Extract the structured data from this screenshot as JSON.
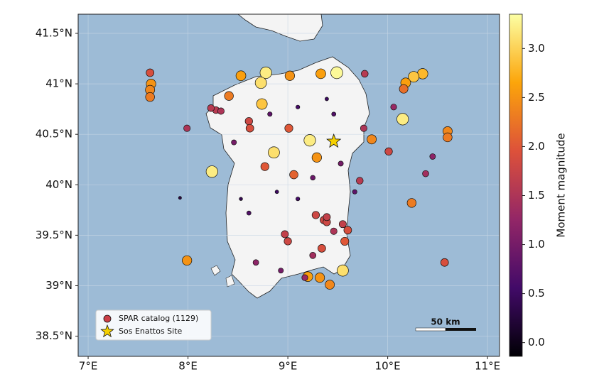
{
  "chart_data": {
    "type": "scatter",
    "xlim": [
      6.9,
      11.12
    ],
    "ylim": [
      38.3,
      41.69
    ],
    "xticks": [
      {
        "value": 7,
        "label": "7°E"
      },
      {
        "value": 8,
        "label": "8°E"
      },
      {
        "value": 9,
        "label": "9°E"
      },
      {
        "value": 10,
        "label": "10°E"
      },
      {
        "value": 11,
        "label": "11°E"
      }
    ],
    "yticks": [
      {
        "value": 38.5,
        "label": "38.5°N"
      },
      {
        "value": 39,
        "label": "39°N"
      },
      {
        "value": 39.5,
        "label": "39.5°N"
      },
      {
        "value": 40,
        "label": "40°N"
      },
      {
        "value": 40.5,
        "label": "40.5°N"
      },
      {
        "value": 41,
        "label": "41°N"
      },
      {
        "value": 41.5,
        "label": "41.5°N"
      }
    ],
    "grid": true,
    "legend": "lower left",
    "scale_bar": "50 km",
    "colorbar": {
      "label": "Moment magnitude",
      "clim": [
        -0.14,
        3.35
      ],
      "ticks": [
        {
          "value": 0,
          "label": "0.0"
        },
        {
          "value": 0.5,
          "label": "0.5"
        },
        {
          "value": 1,
          "label": "1.0"
        },
        {
          "value": 1.5,
          "label": "1.5"
        },
        {
          "value": 2,
          "label": "2.0"
        },
        {
          "value": 2.5,
          "label": "2.5"
        },
        {
          "value": 3,
          "label": "3.0"
        }
      ],
      "colormap": [
        "#000004",
        "#420a68",
        "#932667",
        "#dd513a",
        "#fca50a",
        "#fcffa4"
      ]
    },
    "series": [
      {
        "name": "SPAR catalog (1129)",
        "color": "#cc3f47",
        "marker": "circle",
        "x": [
          8.78,
          8.73,
          8.74,
          9.49,
          10.15,
          9.22,
          8.86,
          8.24,
          9.55,
          10.35,
          10.26,
          10.18,
          10.16,
          9.02,
          8.53,
          9.33,
          7.99,
          9.29,
          9.2,
          9.32,
          9.42,
          10.6,
          10.6,
          9.84,
          7.63,
          7.62,
          7.62,
          7.62,
          8.41,
          8.77,
          9.01,
          9.06,
          9.36,
          9.39,
          9.55,
          9.28,
          9.39,
          9.6,
          8.28,
          8.33,
          8.23,
          8.61,
          8.62,
          8.97,
          9.0,
          9.34,
          9.57,
          10.24,
          10.57,
          9.76,
          9.72,
          7.99,
          10.01,
          10.38,
          10.45,
          8.82,
          9.1,
          9.46,
          9.25,
          8.89,
          8.61,
          9.1,
          9.53,
          8.68,
          8.93,
          8.53,
          9.39,
          8.46,
          9.67,
          9.17,
          7.92,
          10.06,
          9.77,
          9.25,
          9.46
        ],
        "y": [
          41.11,
          41.01,
          40.8,
          41.11,
          40.65,
          40.44,
          40.32,
          40.13,
          39.15,
          41.1,
          41.07,
          41.01,
          40.95,
          41.08,
          41.08,
          41.1,
          39.25,
          40.27,
          39.09,
          39.08,
          39.01,
          40.53,
          40.47,
          40.45,
          41.0,
          40.94,
          40.87,
          41.11,
          40.88,
          40.18,
          40.56,
          40.1,
          39.65,
          39.63,
          39.61,
          39.7,
          39.68,
          39.55,
          40.74,
          40.73,
          40.76,
          40.63,
          40.56,
          39.51,
          39.44,
          39.37,
          39.44,
          39.82,
          39.23,
          40.56,
          40.04,
          40.56,
          40.33,
          40.11,
          40.28,
          40.7,
          40.77,
          40.7,
          40.07,
          39.93,
          39.72,
          39.86,
          40.21,
          39.23,
          39.15,
          39.86,
          40.85,
          40.42,
          39.93,
          39.08,
          39.87,
          40.77,
          41.1,
          39.3,
          39.54
        ],
        "values": [
          3.2,
          3.1,
          2.9,
          3.3,
          3.2,
          3.2,
          3.1,
          3.2,
          3.1,
          2.8,
          2.9,
          2.6,
          2.2,
          2.5,
          2.6,
          2.6,
          2.5,
          2.5,
          2.6,
          2.5,
          2.4,
          2.4,
          2.3,
          2.4,
          2.5,
          2.4,
          2.3,
          1.9,
          2.3,
          2.0,
          2.0,
          2.1,
          1.8,
          1.8,
          1.7,
          1.8,
          1.7,
          1.9,
          1.6,
          1.5,
          1.6,
          1.8,
          1.9,
          1.7,
          1.8,
          1.9,
          2.0,
          2.3,
          1.9,
          1.5,
          1.6,
          1.5,
          1.8,
          1.4,
          1.2,
          0.8,
          0.6,
          0.7,
          0.9,
          0.5,
          0.7,
          0.6,
          1.0,
          1.2,
          1.0,
          0.4,
          0.5,
          1.0,
          0.8,
          1.3,
          0.3,
          1.3,
          1.6,
          1.4,
          1.5
        ]
      },
      {
        "name": "Sos Enattos Site",
        "color": "#f5d000",
        "marker": "star",
        "x": [
          9.46
        ],
        "y": [
          40.43
        ]
      }
    ]
  }
}
